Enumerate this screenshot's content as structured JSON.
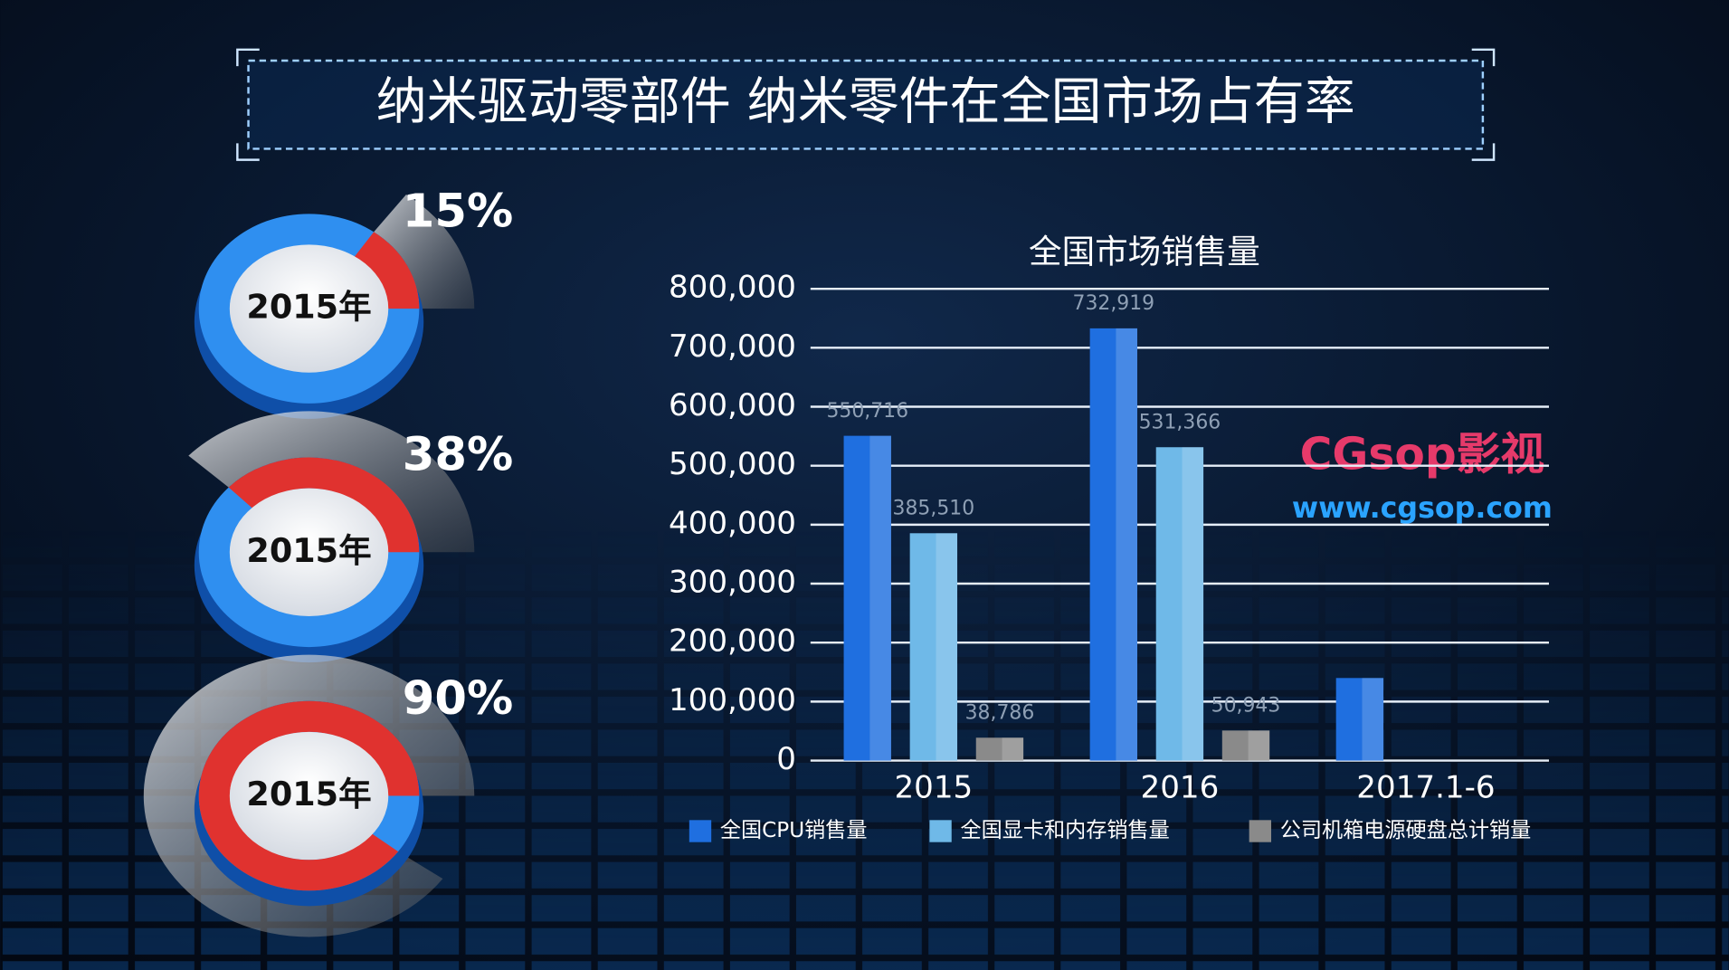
{
  "title": "纳米驱动零部件 纳米零件在全国市场占有率",
  "watermark": {
    "brand": "CGsop影视",
    "url": "www.cgsop.com"
  },
  "chart_data": [
    {
      "type": "gauge",
      "label": "2015年",
      "values": [
        15
      ],
      "value_labels": [
        "15%"
      ],
      "color": "#e0322f",
      "track_color": "#2f8ff0"
    },
    {
      "type": "gauge",
      "label": "2015年",
      "values": [
        38
      ],
      "value_labels": [
        "38%"
      ],
      "color": "#e0322f",
      "track_color": "#2f8ff0"
    },
    {
      "type": "gauge",
      "label": "2015年",
      "values": [
        90
      ],
      "value_labels": [
        "90%"
      ],
      "color": "#e0322f",
      "track_color": "#2f8ff0"
    },
    {
      "type": "bar",
      "title": "全国市场销售量",
      "categories": [
        "2015",
        "2016",
        "2017.1-6"
      ],
      "series": [
        {
          "name": "全国CPU销售量",
          "color": "#1f6fe0",
          "values": [
            550716,
            732919,
            140000
          ],
          "value_labels": [
            "550,716",
            "732,919",
            null
          ]
        },
        {
          "name": "全国显卡和内存销售量",
          "color": "#6fb9e8",
          "values": [
            385510,
            531366,
            null
          ],
          "value_labels": [
            "385,510",
            "531,366",
            null
          ]
        },
        {
          "name": "公司机箱电源硬盘总计销量",
          "color": "#8a8a8a",
          "values": [
            38786,
            50943,
            null
          ],
          "value_labels": [
            "38,786",
            "50,943",
            null
          ]
        }
      ],
      "ylim": [
        0,
        800000
      ],
      "yticks": [
        0,
        {
          "value": 100000,
          "label": "100,000"
        },
        {
          "value": 200000,
          "label": "200,000"
        },
        {
          "value": 300000,
          "label": "300,000"
        },
        {
          "value": 400000,
          "label": "400,000"
        },
        {
          "value": 500000,
          "label": "500,000"
        },
        {
          "value": 600000,
          "label": "600,000"
        },
        {
          "value": 700000,
          "label": "700,000"
        },
        {
          "value": 800000,
          "label": "800,000"
        }
      ],
      "grid": true,
      "legend": "bottom"
    }
  ]
}
